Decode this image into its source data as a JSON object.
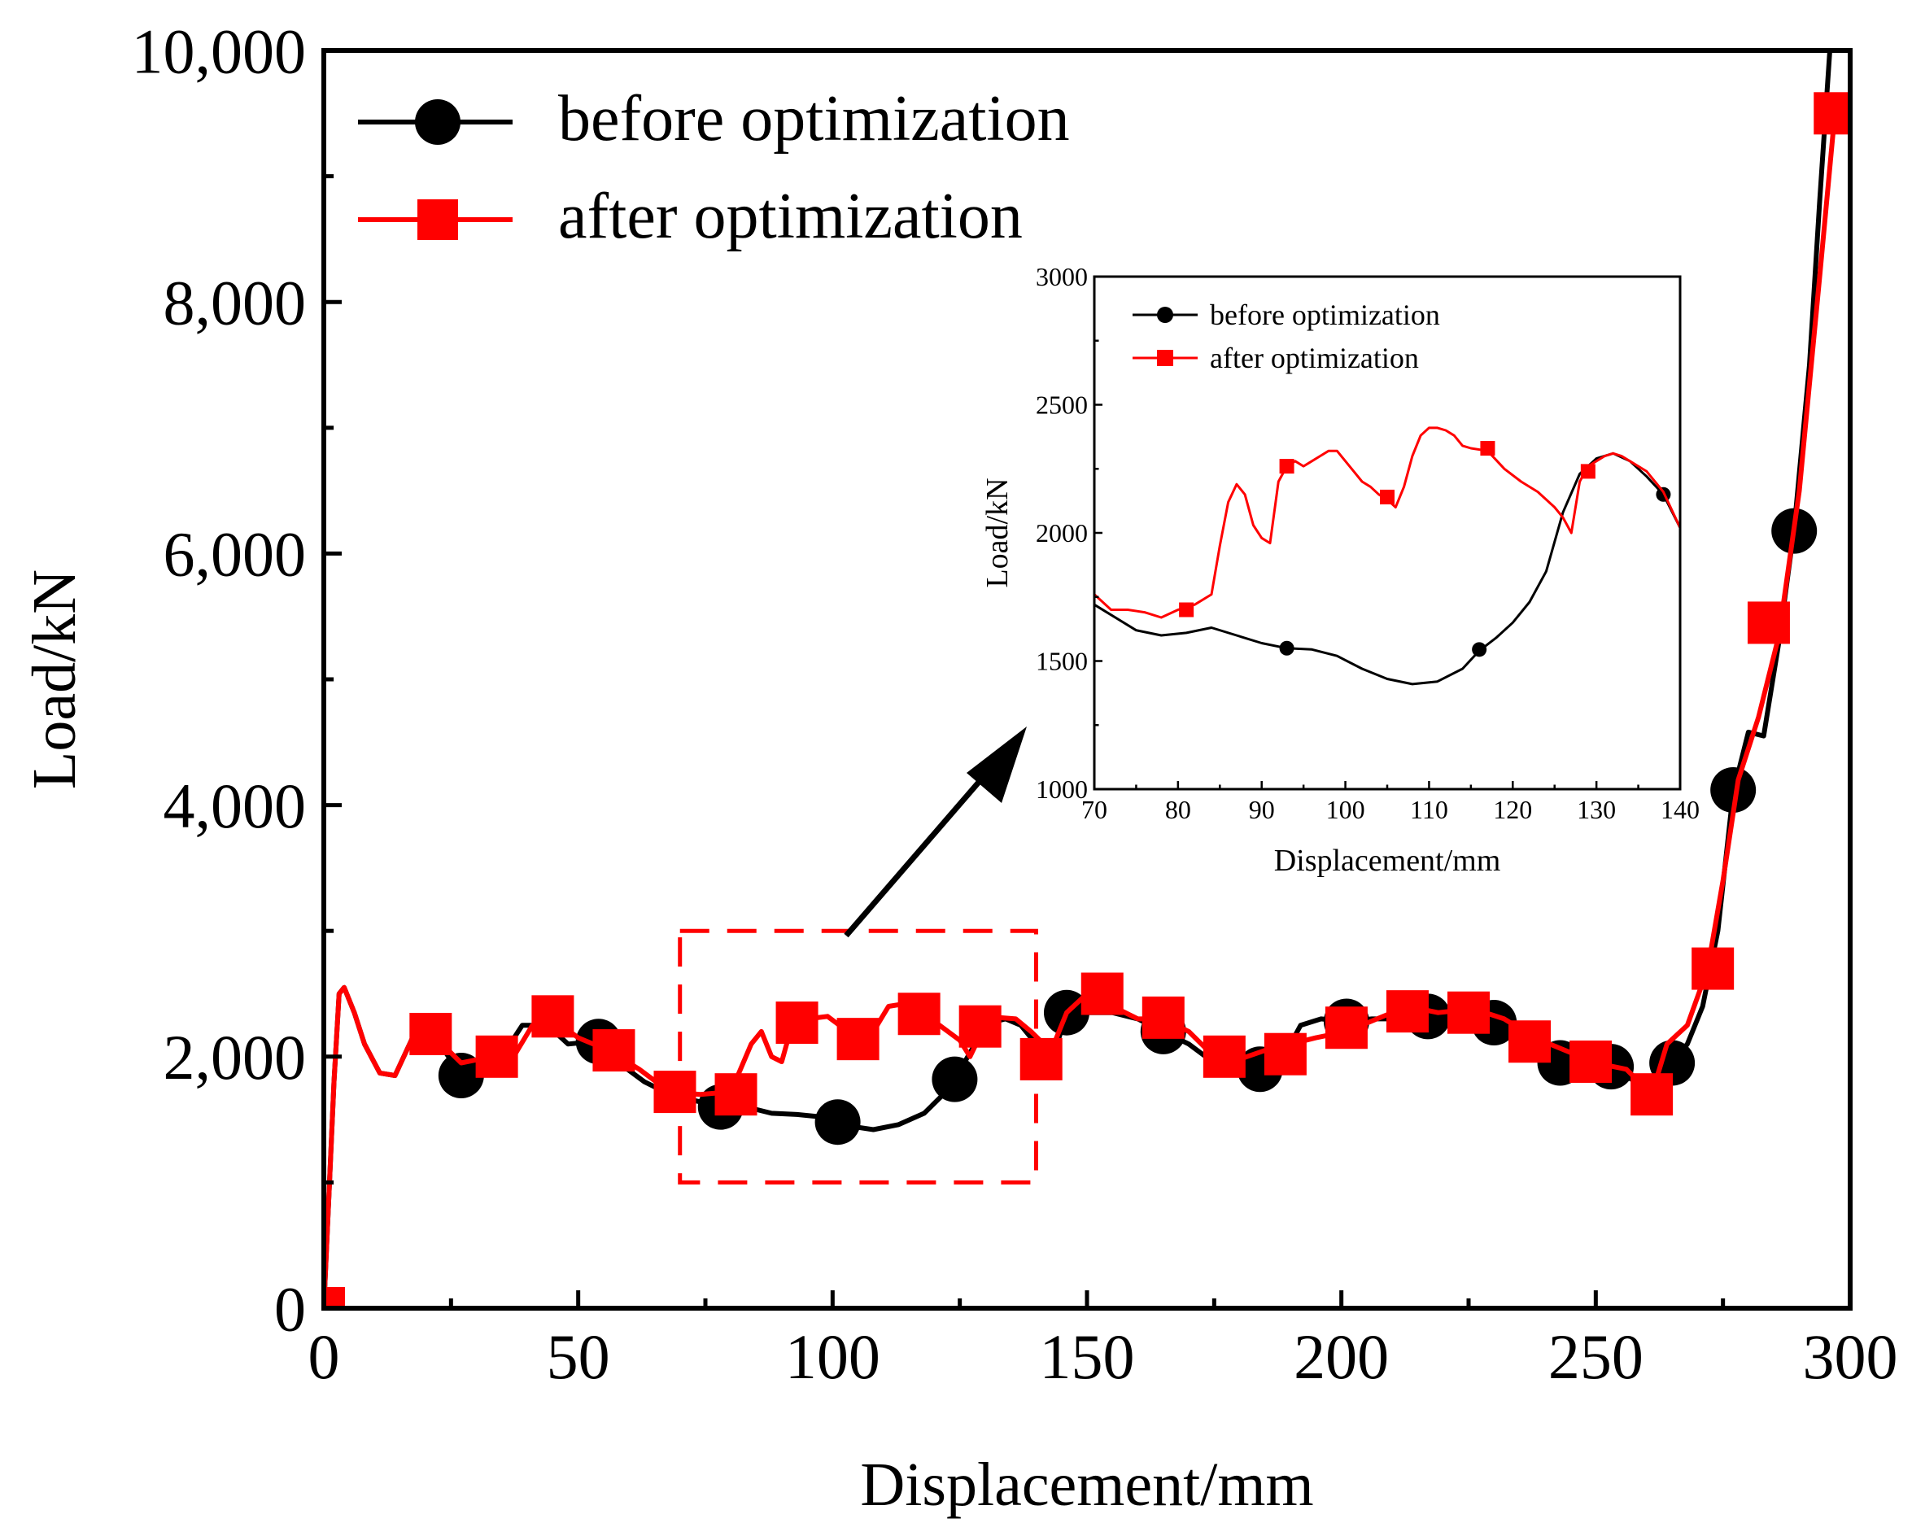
{
  "colors": {
    "before": "#000000",
    "after": "#ff0000",
    "axis": "#000000"
  },
  "chart_data": [
    {
      "type": "line",
      "title": "",
      "xlabel": "Displacement/mm",
      "ylabel": "Load/kN",
      "xlim": [
        0,
        300
      ],
      "ylim": [
        0,
        10000
      ],
      "x_ticks": [
        0,
        50,
        100,
        150,
        200,
        250,
        300
      ],
      "x_tick_labels": [
        "0",
        "50",
        "100",
        "150",
        "200",
        "250",
        "300"
      ],
      "y_ticks": [
        0,
        2000,
        4000,
        6000,
        8000,
        10000
      ],
      "y_tick_labels": [
        "0",
        "2,000",
        "4,000",
        "6,000",
        "8,000",
        "10,000"
      ],
      "legend": "top-left",
      "series": [
        {
          "name": "before optimization",
          "color": "#000000",
          "marker": "circle",
          "x": [
            0,
            1,
            2,
            3,
            4,
            6,
            8,
            11,
            14,
            18,
            22,
            27,
            31,
            35,
            39,
            44,
            48,
            53,
            58,
            63,
            68,
            73,
            78,
            83,
            88,
            93,
            98,
            103,
            108,
            113,
            118,
            123,
            128,
            131,
            134,
            137,
            140,
            143,
            146,
            150,
            155,
            160,
            165,
            170,
            175,
            180,
            184,
            188,
            192,
            196,
            201,
            206,
            211,
            217,
            223,
            230,
            236,
            243,
            249,
            253,
            258,
            261,
            265,
            268,
            271,
            274,
            277,
            280,
            283,
            286,
            289,
            292,
            294,
            296
          ],
          "y": [
            0,
            900,
            1800,
            2500,
            2550,
            2350,
            2100,
            1870,
            1850,
            2200,
            2150,
            1850,
            2000,
            2000,
            2250,
            2250,
            2100,
            2120,
            1950,
            1800,
            1700,
            1650,
            1600,
            1600,
            1550,
            1540,
            1520,
            1450,
            1420,
            1460,
            1550,
            1750,
            2100,
            2270,
            2300,
            2250,
            2100,
            1950,
            2350,
            2350,
            2350,
            2300,
            2200,
            2100,
            1950,
            1920,
            1900,
            1950,
            2250,
            2300,
            2280,
            2300,
            2300,
            2300,
            2300,
            2270,
            2100,
            1950,
            1930,
            1900,
            1800,
            1720,
            1950,
            2100,
            2400,
            3000,
            4100,
            4580,
            4550,
            5300,
            6200,
            7500,
            8800,
            10000
          ],
          "marker_x": [
            27,
            54,
            78,
            101,
            124,
            146,
            165,
            184,
            201,
            217,
            230,
            243,
            253,
            265,
            277,
            289
          ],
          "marker_y": [
            1850,
            2120,
            1600,
            1480,
            1820,
            2350,
            2200,
            1900,
            2280,
            2320,
            2270,
            1950,
            1920,
            1950,
            4120,
            6180
          ]
        },
        {
          "name": "after optimization",
          "color": "#ff0000",
          "marker": "square",
          "x": [
            0,
            1,
            2,
            3,
            4,
            6,
            8,
            11,
            14,
            18,
            22,
            27,
            33,
            37,
            41,
            45,
            50,
            56,
            62,
            68,
            74,
            80,
            84,
            86,
            88,
            90,
            92,
            95,
            99,
            103,
            105,
            108,
            111,
            114,
            117,
            121,
            125,
            127,
            130,
            133,
            136,
            139,
            141,
            143,
            146,
            150,
            155,
            160,
            165,
            170,
            175,
            180,
            185,
            190,
            195,
            201,
            207,
            213,
            219,
            226,
            232,
            238,
            244,
            250,
            256,
            261,
            264,
            268,
            272,
            275,
            278,
            282,
            286,
            290,
            294,
            297
          ],
          "y": [
            0,
            900,
            1800,
            2500,
            2550,
            2350,
            2100,
            1870,
            1850,
            2200,
            2150,
            1950,
            2000,
            1980,
            2250,
            2300,
            2150,
            2050,
            1900,
            1720,
            1700,
            1720,
            2100,
            2200,
            2000,
            1960,
            2250,
            2300,
            2320,
            2200,
            2150,
            2200,
            2400,
            2420,
            2330,
            2250,
            2130,
            2000,
            2250,
            2310,
            2300,
            2200,
            2120,
            2050,
            2350,
            2500,
            2400,
            2300,
            2300,
            2200,
            2000,
            1980,
            2050,
            2100,
            2150,
            2200,
            2300,
            2400,
            2350,
            2380,
            2300,
            2150,
            2050,
            1950,
            1900,
            1700,
            2100,
            2250,
            2700,
            3400,
            4200,
            4700,
            5350,
            6500,
            8200,
            9500
          ],
          "marker_x": [
            0,
            21,
            34,
            45,
            57,
            69,
            81,
            93,
            105,
            117,
            129,
            141,
            153,
            165,
            177,
            189,
            201,
            213,
            225,
            237,
            249,
            261,
            273,
            284,
            297
          ],
          "marker_y": [
            0,
            2180,
            2000,
            2320,
            2050,
            1720,
            1700,
            2270,
            2140,
            2340,
            2240,
            1980,
            2500,
            2310,
            2000,
            2020,
            2230,
            2360,
            2350,
            2120,
            1960,
            1700,
            2700,
            5450,
            9500
          ]
        }
      ],
      "zoom_region": {
        "x_range": [
          70,
          140
        ],
        "y_range": [
          1000,
          3000
        ]
      }
    },
    {
      "type": "line",
      "title": "",
      "xlabel": "Displacement/mm",
      "ylabel": "Load/kN",
      "xlim": [
        70,
        140
      ],
      "ylim": [
        1000,
        3000
      ],
      "x_ticks": [
        70,
        80,
        90,
        100,
        110,
        120,
        130,
        140
      ],
      "x_tick_labels": [
        "70",
        "80",
        "90",
        "100",
        "110",
        "120",
        "130",
        "140"
      ],
      "y_ticks": [
        1000,
        1500,
        2000,
        2500,
        3000
      ],
      "y_tick_labels": [
        "1000",
        "1500",
        "2000",
        "2500",
        "3000"
      ],
      "legend": "top-left",
      "series": [
        {
          "name": "before optimization",
          "color": "#000000",
          "marker": "circle",
          "x": [
            70,
            72,
            75,
            78,
            81,
            84,
            87,
            90,
            93,
            96,
            99,
            102,
            105,
            108,
            111,
            114,
            116,
            118,
            120,
            122,
            124,
            126,
            128,
            130,
            132,
            134,
            136,
            138,
            140
          ],
          "y": [
            1720,
            1680,
            1620,
            1600,
            1610,
            1630,
            1600,
            1570,
            1550,
            1545,
            1520,
            1470,
            1430,
            1410,
            1420,
            1470,
            1540,
            1590,
            1650,
            1730,
            1850,
            2080,
            2230,
            2290,
            2310,
            2280,
            2220,
            2150,
            2020
          ],
          "marker_x": [
            93,
            116,
            138
          ],
          "marker_y": [
            1550,
            1545,
            2150
          ]
        },
        {
          "name": "after optimization",
          "color": "#ff0000",
          "marker": "square",
          "x": [
            70,
            72,
            74,
            76,
            78,
            80,
            82,
            84,
            85,
            86,
            87,
            88,
            89,
            90,
            91,
            92,
            93,
            94,
            95,
            96,
            97,
            98,
            99,
            100,
            101,
            102,
            103,
            104,
            105,
            106,
            107,
            108,
            109,
            110,
            111,
            112,
            113,
            114,
            115,
            117,
            119,
            121,
            123,
            125,
            126,
            127,
            128,
            129,
            130,
            131,
            132,
            133,
            134,
            136,
            138,
            140
          ],
          "y": [
            1760,
            1700,
            1700,
            1690,
            1670,
            1700,
            1720,
            1760,
            1950,
            2120,
            2190,
            2150,
            2030,
            1980,
            1960,
            2200,
            2260,
            2280,
            2260,
            2280,
            2300,
            2320,
            2320,
            2280,
            2240,
            2200,
            2180,
            2150,
            2130,
            2100,
            2180,
            2300,
            2380,
            2410,
            2410,
            2400,
            2380,
            2340,
            2330,
            2320,
            2250,
            2200,
            2160,
            2100,
            2060,
            2000,
            2200,
            2260,
            2280,
            2300,
            2310,
            2300,
            2280,
            2240,
            2160,
            2020
          ],
          "marker_x": [
            81,
            93,
            105,
            117,
            129
          ],
          "marker_y": [
            1700,
            2260,
            2140,
            2330,
            2240
          ]
        }
      ]
    }
  ]
}
